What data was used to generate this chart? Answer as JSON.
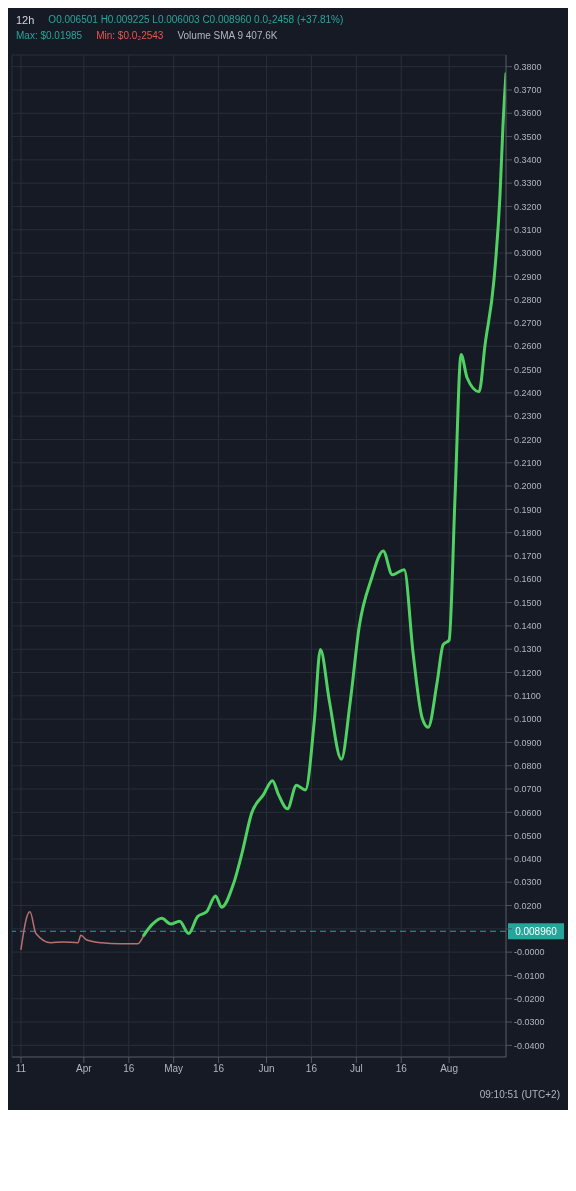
{
  "chart_data": {
    "type": "line",
    "title": "12h",
    "annotations": [
      "O0.006501 H0.009225 L0.006003 C0.008960 0.0₂2458 (+37.81%)",
      "Max: $0.01985",
      "Min: $0.0₂2543",
      "Volume SMA 9 407.6K",
      "09:10:51 (UTC+2)"
    ],
    "series": [
      {
        "color": "#b87070",
        "x": [
          "--03-11",
          "--03-13",
          "--03-14",
          "--03-16",
          "--03-21",
          "--03-25",
          "--03-30",
          "--03-31",
          "--04-02",
          "--04-07",
          "--04-13",
          "--04-19",
          "--04-21"
        ],
        "values": [
          0.0012,
          0.0153,
          0.0173,
          0.008,
          0.004,
          0.0044,
          0.004,
          0.0072,
          0.0052,
          0.004,
          0.0036,
          0.0036,
          0.0072
        ]
      },
      {
        "color": "#4fd262",
        "x": [
          "--04-21",
          "--04-24",
          "--04-27",
          "--04-30",
          "--05-03",
          "--05-06",
          "--05-09",
          "--05-12",
          "--05-15",
          "--05-17",
          "--05-21",
          "--05-24",
          "--05-27",
          "--05-31",
          "--06-03",
          "--06-05",
          "--06-08",
          "--06-11",
          "--06-14",
          "--06-17",
          "--06-19",
          "--06-22",
          "--06-26",
          "--06-29",
          "--07-02",
          "--07-06",
          "--07-10",
          "--07-13",
          "--07-17",
          "--07-20",
          "--07-23",
          "--07-25",
          "--07-28",
          "--07-30",
          "--08-01",
          "--08-03",
          "--08-05",
          "--08-07",
          "--08-11",
          "--08-13",
          "--08-16",
          "--08-18",
          "--08-19",
          "--08-20"
        ],
        "values": [
          0.0072,
          0.0121,
          0.0145,
          0.0121,
          0.0133,
          0.008,
          0.0153,
          0.0173,
          0.0241,
          0.0193,
          0.0294,
          0.0434,
          0.0595,
          0.0676,
          0.0736,
          0.0676,
          0.0615,
          0.0716,
          0.0696,
          0.0997,
          0.1299,
          0.1078,
          0.0828,
          0.1078,
          0.1399,
          0.16,
          0.1721,
          0.162,
          0.1641,
          0.1279,
          0.1005,
          0.0965,
          0.1158,
          0.1319,
          0.1339,
          0.1962,
          0.2565,
          0.2465,
          0.2405,
          0.2606,
          0.2887,
          0.3249,
          0.355,
          0.377
        ]
      }
    ],
    "xlim": [
      "--03-08",
      "--08-20"
    ],
    "xticks": [
      {
        "value": "--03-11",
        "label": "11"
      },
      {
        "value": "--04-01",
        "label": "Apr"
      },
      {
        "value": "--04-16",
        "label": "16"
      },
      {
        "value": "--05-01",
        "label": "May"
      },
      {
        "value": "--05-16",
        "label": "16"
      },
      {
        "value": "--06-01",
        "label": "Jun"
      },
      {
        "value": "--06-16",
        "label": "16"
      },
      {
        "value": "--07-01",
        "label": "Jul"
      },
      {
        "value": "--07-16",
        "label": "16"
      },
      {
        "value": "--08-01",
        "label": "Aug"
      }
    ],
    "ylim": [
      -0.045,
      0.385
    ],
    "yticks": [
      {
        "value": -0.04,
        "label": "-0.0400"
      },
      {
        "value": -0.03,
        "label": "-0.0300"
      },
      {
        "value": -0.02,
        "label": "-0.0200"
      },
      {
        "value": -0.01,
        "label": "-0.0100"
      },
      {
        "value": 0,
        "label": "-0.0000"
      },
      {
        "value": 0.01,
        "label": null
      },
      {
        "value": 0.02,
        "label": "0.0200"
      },
      {
        "value": 0.03,
        "label": "0.0300"
      },
      {
        "value": 0.04,
        "label": "0.0400"
      },
      {
        "value": 0.05,
        "label": "0.0500"
      },
      {
        "value": 0.06,
        "label": "0.0600"
      },
      {
        "value": 0.07,
        "label": "0.0700"
      },
      {
        "value": 0.08,
        "label": "0.0800"
      },
      {
        "value": 0.09,
        "label": "0.0900"
      },
      {
        "value": 0.1,
        "label": "0.1000"
      },
      {
        "value": 0.11,
        "label": "0.1100"
      },
      {
        "value": 0.12,
        "label": "0.1200"
      },
      {
        "value": 0.13,
        "label": "0.1300"
      },
      {
        "value": 0.14,
        "label": "0.1400"
      },
      {
        "value": 0.15,
        "label": "0.1500"
      },
      {
        "value": 0.16,
        "label": "0.1600"
      },
      {
        "value": 0.17,
        "label": "0.1700"
      },
      {
        "value": 0.18,
        "label": "0.1800"
      },
      {
        "value": 0.19,
        "label": "0.1900"
      },
      {
        "value": 0.2,
        "label": "0.2000"
      },
      {
        "value": 0.21,
        "label": "0.2100"
      },
      {
        "value": 0.22,
        "label": "0.2200"
      },
      {
        "value": 0.23,
        "label": "0.2300"
      },
      {
        "value": 0.24,
        "label": "0.2400"
      },
      {
        "value": 0.25,
        "label": "0.2500"
      },
      {
        "value": 0.26,
        "label": "0.2600"
      },
      {
        "value": 0.27,
        "label": "0.2700"
      },
      {
        "value": 0.28,
        "label": "0.2800"
      },
      {
        "value": 0.29,
        "label": "0.2900"
      },
      {
        "value": 0.3,
        "label": "0.3000"
      },
      {
        "value": 0.31,
        "label": "0.3100"
      },
      {
        "value": 0.32,
        "label": "0.3200"
      },
      {
        "value": 0.33,
        "label": "0.3300"
      },
      {
        "value": 0.34,
        "label": "0.3400"
      },
      {
        "value": 0.35,
        "label": "0.3500"
      },
      {
        "value": 0.36,
        "label": "0.3600"
      },
      {
        "value": 0.37,
        "label": "0.3700"
      },
      {
        "value": 0.38,
        "label": "0.3800"
      }
    ],
    "ref_lines": [
      {
        "axis": "y",
        "value": 0.00896,
        "label": "0.008960",
        "color": "#26a69a",
        "line_style": "dashed"
      }
    ],
    "grid": true,
    "legend": false,
    "marker": "none",
    "line_style": "solid"
  }
}
